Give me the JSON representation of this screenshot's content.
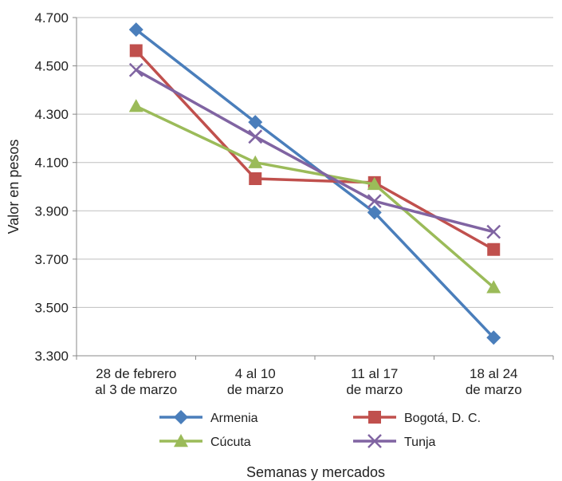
{
  "chart_data": {
    "type": "line",
    "title": "",
    "xlabel": "Semanas y mercados",
    "ylabel": "Valor en pesos",
    "ylim": [
      3300,
      4700
    ],
    "yticks": [
      3300,
      3500,
      3700,
      3900,
      4100,
      4300,
      4500,
      4700
    ],
    "ytick_labels": [
      "3.300",
      "3.500",
      "3.700",
      "3.900",
      "4.100",
      "4.300",
      "4.500",
      "4.700"
    ],
    "grid": "horizontal",
    "legend_position": "bottom",
    "categories": [
      [
        "28 de febrero",
        "al 3 de marzo"
      ],
      [
        "4 al 10",
        "de marzo"
      ],
      [
        "11 al 17",
        "de marzo"
      ],
      [
        "18 al 24",
        "de marzo"
      ]
    ],
    "series": [
      {
        "name": "Armenia",
        "color": "#4a7ebb",
        "marker": "diamond",
        "values": [
          4650,
          4267,
          3893,
          3375
        ]
      },
      {
        "name": "Bogotá, D. C.",
        "color": "#c0504d",
        "marker": "square",
        "values": [
          4563,
          4033,
          4017,
          3740
        ]
      },
      {
        "name": "Cúcuta",
        "color": "#9bbb59",
        "marker": "triangle",
        "values": [
          4333,
          4100,
          4010,
          3583
        ]
      },
      {
        "name": "Tunja",
        "color": "#8064a2",
        "marker": "x",
        "values": [
          4483,
          4207,
          3940,
          3813
        ]
      }
    ]
  }
}
